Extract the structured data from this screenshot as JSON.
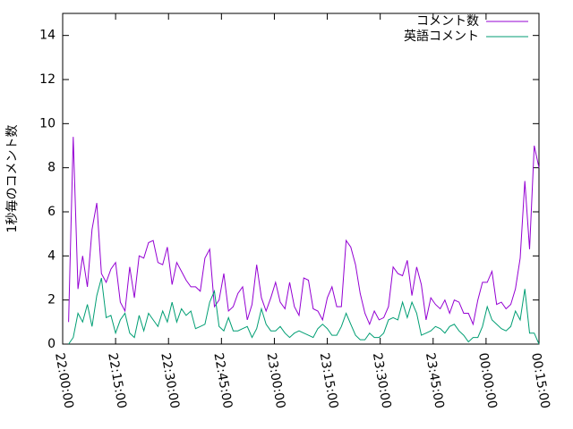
{
  "chart_data": {
    "type": "line",
    "y_label": "1秒毎のコメント数",
    "x": [
      "22:01:40",
      "22:03:00",
      "22:04:20",
      "22:05:40",
      "22:07:00",
      "22:08:20",
      "22:09:40",
      "22:11:00",
      "22:12:20",
      "22:13:40",
      "22:15:00",
      "22:16:20",
      "22:17:40",
      "22:19:00",
      "22:20:20",
      "22:21:40",
      "22:23:00",
      "22:24:20",
      "22:25:40",
      "22:27:00",
      "22:28:20",
      "22:29:40",
      "22:31:00",
      "22:32:20",
      "22:33:40",
      "22:35:00",
      "22:36:20",
      "22:37:40",
      "22:39:00",
      "22:40:20",
      "22:41:40",
      "22:43:00",
      "22:44:20",
      "22:45:40",
      "22:47:00",
      "22:48:20",
      "22:49:40",
      "22:51:00",
      "22:52:20",
      "22:53:40",
      "22:55:00",
      "22:56:20",
      "22:57:40",
      "22:59:00",
      "23:00:20",
      "23:01:40",
      "23:03:00",
      "23:04:20",
      "23:05:40",
      "23:07:00",
      "23:08:20",
      "23:09:40",
      "23:11:00",
      "23:12:20",
      "23:13:40",
      "23:15:00",
      "23:16:20",
      "23:17:40",
      "23:19:00",
      "23:20:20",
      "23:21:40",
      "23:23:00",
      "23:24:20",
      "23:25:40",
      "23:27:00",
      "23:28:20",
      "23:29:40",
      "23:31:00",
      "23:32:20",
      "23:33:40",
      "23:35:00",
      "23:36:20",
      "23:37:40",
      "23:39:00",
      "23:40:20",
      "23:41:40",
      "23:43:00",
      "23:44:20",
      "23:45:40",
      "23:47:00",
      "23:48:20",
      "23:49:40",
      "23:51:00",
      "23:52:20",
      "23:53:40",
      "23:55:00",
      "23:56:20",
      "23:57:40",
      "23:59:00",
      "00:00:20",
      "00:01:40",
      "00:03:00",
      "00:04:20",
      "00:05:40",
      "00:07:00",
      "00:08:20",
      "00:09:40",
      "00:11:00",
      "00:12:20",
      "00:13:40",
      "00:15:00"
    ],
    "series": [
      {
        "name": "コメント数",
        "color": "#9400d3",
        "values": [
          1.0,
          9.4,
          2.5,
          4.0,
          2.6,
          5.2,
          6.4,
          3.2,
          2.8,
          3.4,
          3.7,
          1.9,
          1.5,
          3.5,
          2.1,
          4.0,
          3.9,
          4.6,
          4.7,
          3.7,
          3.6,
          4.4,
          2.7,
          3.7,
          3.3,
          2.9,
          2.6,
          2.6,
          2.4,
          3.9,
          4.3,
          1.7,
          2.0,
          3.2,
          1.5,
          1.7,
          2.3,
          2.6,
          1.1,
          1.8,
          3.6,
          2.1,
          1.5,
          2.1,
          2.8,
          1.9,
          1.6,
          2.8,
          1.7,
          1.3,
          3.0,
          2.9,
          1.6,
          1.5,
          1.1,
          2.1,
          2.6,
          1.7,
          1.7,
          4.7,
          4.4,
          3.6,
          2.3,
          1.4,
          0.9,
          1.5,
          1.1,
          1.2,
          1.7,
          3.5,
          3.2,
          3.1,
          3.8,
          2.2,
          3.5,
          2.7,
          1.1,
          2.1,
          1.8,
          1.6,
          2.0,
          1.4,
          2.0,
          1.9,
          1.4,
          1.4,
          0.9,
          2.0,
          2.8,
          2.8,
          3.3,
          1.8,
          1.9,
          1.6,
          1.8,
          2.5,
          3.9,
          7.4,
          4.3,
          9.0,
          8.0
        ]
      },
      {
        "name": "英語コメント",
        "color": "#009e73",
        "values": [
          0,
          0.3,
          1.4,
          1.0,
          1.8,
          0.8,
          2.2,
          3.0,
          1.2,
          1.3,
          0.5,
          1.1,
          1.4,
          0.5,
          0.3,
          1.3,
          0.6,
          1.4,
          1.1,
          0.8,
          1.5,
          1.0,
          1.9,
          1.0,
          1.6,
          1.3,
          1.5,
          0.7,
          0.8,
          0.9,
          1.9,
          2.4,
          0.8,
          0.6,
          1.2,
          0.6,
          0.6,
          0.7,
          0.8,
          0.3,
          0.7,
          1.6,
          0.9,
          0.6,
          0.6,
          0.8,
          0.5,
          0.3,
          0.5,
          0.6,
          0.5,
          0.4,
          0.3,
          0.7,
          0.9,
          0.7,
          0.4,
          0.4,
          0.8,
          1.4,
          0.9,
          0.4,
          0.2,
          0.2,
          0.5,
          0.3,
          0.3,
          0.5,
          1.1,
          1.2,
          1.1,
          1.9,
          1.2,
          1.9,
          1.4,
          0.4,
          0.5,
          0.6,
          0.8,
          0.7,
          0.5,
          0.8,
          0.9,
          0.6,
          0.4,
          0.1,
          0.3,
          0.3,
          0.8,
          1.7,
          1.1,
          0.9,
          0.7,
          0.6,
          0.8,
          1.5,
          1.1,
          2.5,
          0.5,
          0.5,
          0
        ]
      }
    ],
    "xlim": [
      "22:00:00",
      "00:15:00"
    ],
    "xticks": [
      "22:00:00",
      "22:15:00",
      "22:30:00",
      "22:45:00",
      "23:00:00",
      "23:15:00",
      "23:30:00",
      "23:45:00",
      "00:00:00",
      "00:15:00"
    ],
    "ylim": [
      0,
      15
    ],
    "yticks": [
      0,
      2,
      4,
      6,
      8,
      10,
      12,
      14
    ],
    "legend": "top-right"
  }
}
